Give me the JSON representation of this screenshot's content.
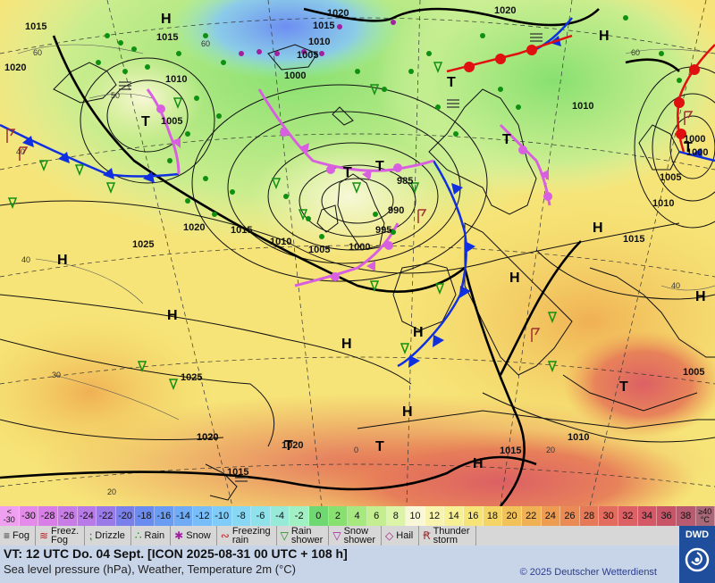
{
  "map": {
    "pressure_labels": [
      "1015",
      "1020",
      "1015",
      "1010",
      "1010",
      "1005",
      "1000",
      "1020",
      "1020",
      "1015",
      "1010",
      "1005",
      "1000",
      "1020",
      "1015",
      "1010",
      "1005",
      "1000",
      "995",
      "990",
      "985",
      "1005",
      "1000",
      "1025",
      "1020",
      "1015",
      "1010",
      "1025",
      "1020",
      "1015",
      "1015",
      "1015",
      "1010",
      "1005",
      "1005"
    ],
    "high_label": "H",
    "low_label": "T",
    "isotherm_labels": [
      "60",
      "60",
      "50",
      "40",
      "40",
      "30",
      "20",
      "20",
      "60",
      "40",
      "20",
      "0"
    ]
  },
  "colorbar": {
    "cells": [
      {
        "label": "<\n-30",
        "color": "#f0a0f0"
      },
      {
        "label": "-30",
        "color": "#e48ae8"
      },
      {
        "label": "-28",
        "color": "#d87ee6"
      },
      {
        "label": "-26",
        "color": "#c87ce6"
      },
      {
        "label": "-24",
        "color": "#b87ae6"
      },
      {
        "label": "-22",
        "color": "#9a7ae6"
      },
      {
        "label": "-20",
        "color": "#7a80ea"
      },
      {
        "label": "-18",
        "color": "#6a8cf0"
      },
      {
        "label": "-16",
        "color": "#6a9cf4"
      },
      {
        "label": "-14",
        "color": "#70acf6"
      },
      {
        "label": "-12",
        "color": "#78bcf8"
      },
      {
        "label": "-10",
        "color": "#80ccf8"
      },
      {
        "label": "-8",
        "color": "#88d8f4"
      },
      {
        "label": "-6",
        "color": "#90e2ea"
      },
      {
        "label": "-4",
        "color": "#98ead8"
      },
      {
        "label": "-2",
        "color": "#a0f0c4"
      },
      {
        "label": "0",
        "color": "#70d870"
      },
      {
        "label": "2",
        "color": "#88e070"
      },
      {
        "label": "4",
        "color": "#a8e880"
      },
      {
        "label": "6",
        "color": "#c4ee90"
      },
      {
        "label": "8",
        "color": "#dcf4a8"
      },
      {
        "label": "10",
        "color": "#f8f8d8"
      },
      {
        "label": "12",
        "color": "#f8f4b0"
      },
      {
        "label": "14",
        "color": "#f8f094"
      },
      {
        "label": "16",
        "color": "#f6e478"
      },
      {
        "label": "18",
        "color": "#f4d464"
      },
      {
        "label": "20",
        "color": "#f2c25a"
      },
      {
        "label": "22",
        "color": "#f0b054"
      },
      {
        "label": "24",
        "color": "#ee9c52"
      },
      {
        "label": "26",
        "color": "#ea8a54"
      },
      {
        "label": "28",
        "color": "#e67a58"
      },
      {
        "label": "30",
        "color": "#e26c5e"
      },
      {
        "label": "32",
        "color": "#dc6064"
      },
      {
        "label": "34",
        "color": "#d45866"
      },
      {
        "label": "36",
        "color": "#c85468"
      },
      {
        "label": "38",
        "color": "#b85a70"
      },
      {
        "label": "≥40\n°C",
        "color": "#a86878"
      }
    ]
  },
  "legend": {
    "items": [
      {
        "icon": "fog-icon",
        "symbol": "≡",
        "label": "Fog",
        "color": "#333333"
      },
      {
        "icon": "freezing-fog-icon",
        "symbol": "≋",
        "label": "Freez.\nFog",
        "color": "#c02020"
      },
      {
        "icon": "drizzle-icon",
        "symbol": "⁏",
        "label": "Drizzle",
        "color": "#109010"
      },
      {
        "icon": "rain-icon",
        "symbol": "∴",
        "label": "Rain",
        "color": "#109010"
      },
      {
        "icon": "snow-icon",
        "symbol": "✱",
        "label": "Snow",
        "color": "#a020a0"
      },
      {
        "icon": "freezing-rain-icon",
        "symbol": "∾",
        "label": "Freezing\nrain",
        "color": "#c02020"
      },
      {
        "icon": "rain-shower-icon",
        "symbol": "▽",
        "label": "Rain\nshower",
        "color": "#109010"
      },
      {
        "icon": "snow-shower-icon",
        "symbol": "▽",
        "label": "Snow\nshower",
        "color": "#a020a0"
      },
      {
        "icon": "hail-icon",
        "symbol": "◇",
        "label": "Hail",
        "color": "#a02080"
      },
      {
        "icon": "thunderstorm-icon",
        "symbol": "Ꞧ",
        "label": "Thunder\nstorm",
        "color": "#a03030"
      }
    ]
  },
  "info": {
    "valid_time": "VT: 12 UTC Do.  04 Sept. [ICON 2025-08-31  00 UTC + 108 h]",
    "subtitle": "Sea level pressure (hPa), Weather, Temperature 2m (°C)",
    "copyright": "© 2025 Deutscher Wetterdienst"
  },
  "logo": {
    "text": "DWD",
    "color": "#1f4f9c"
  }
}
